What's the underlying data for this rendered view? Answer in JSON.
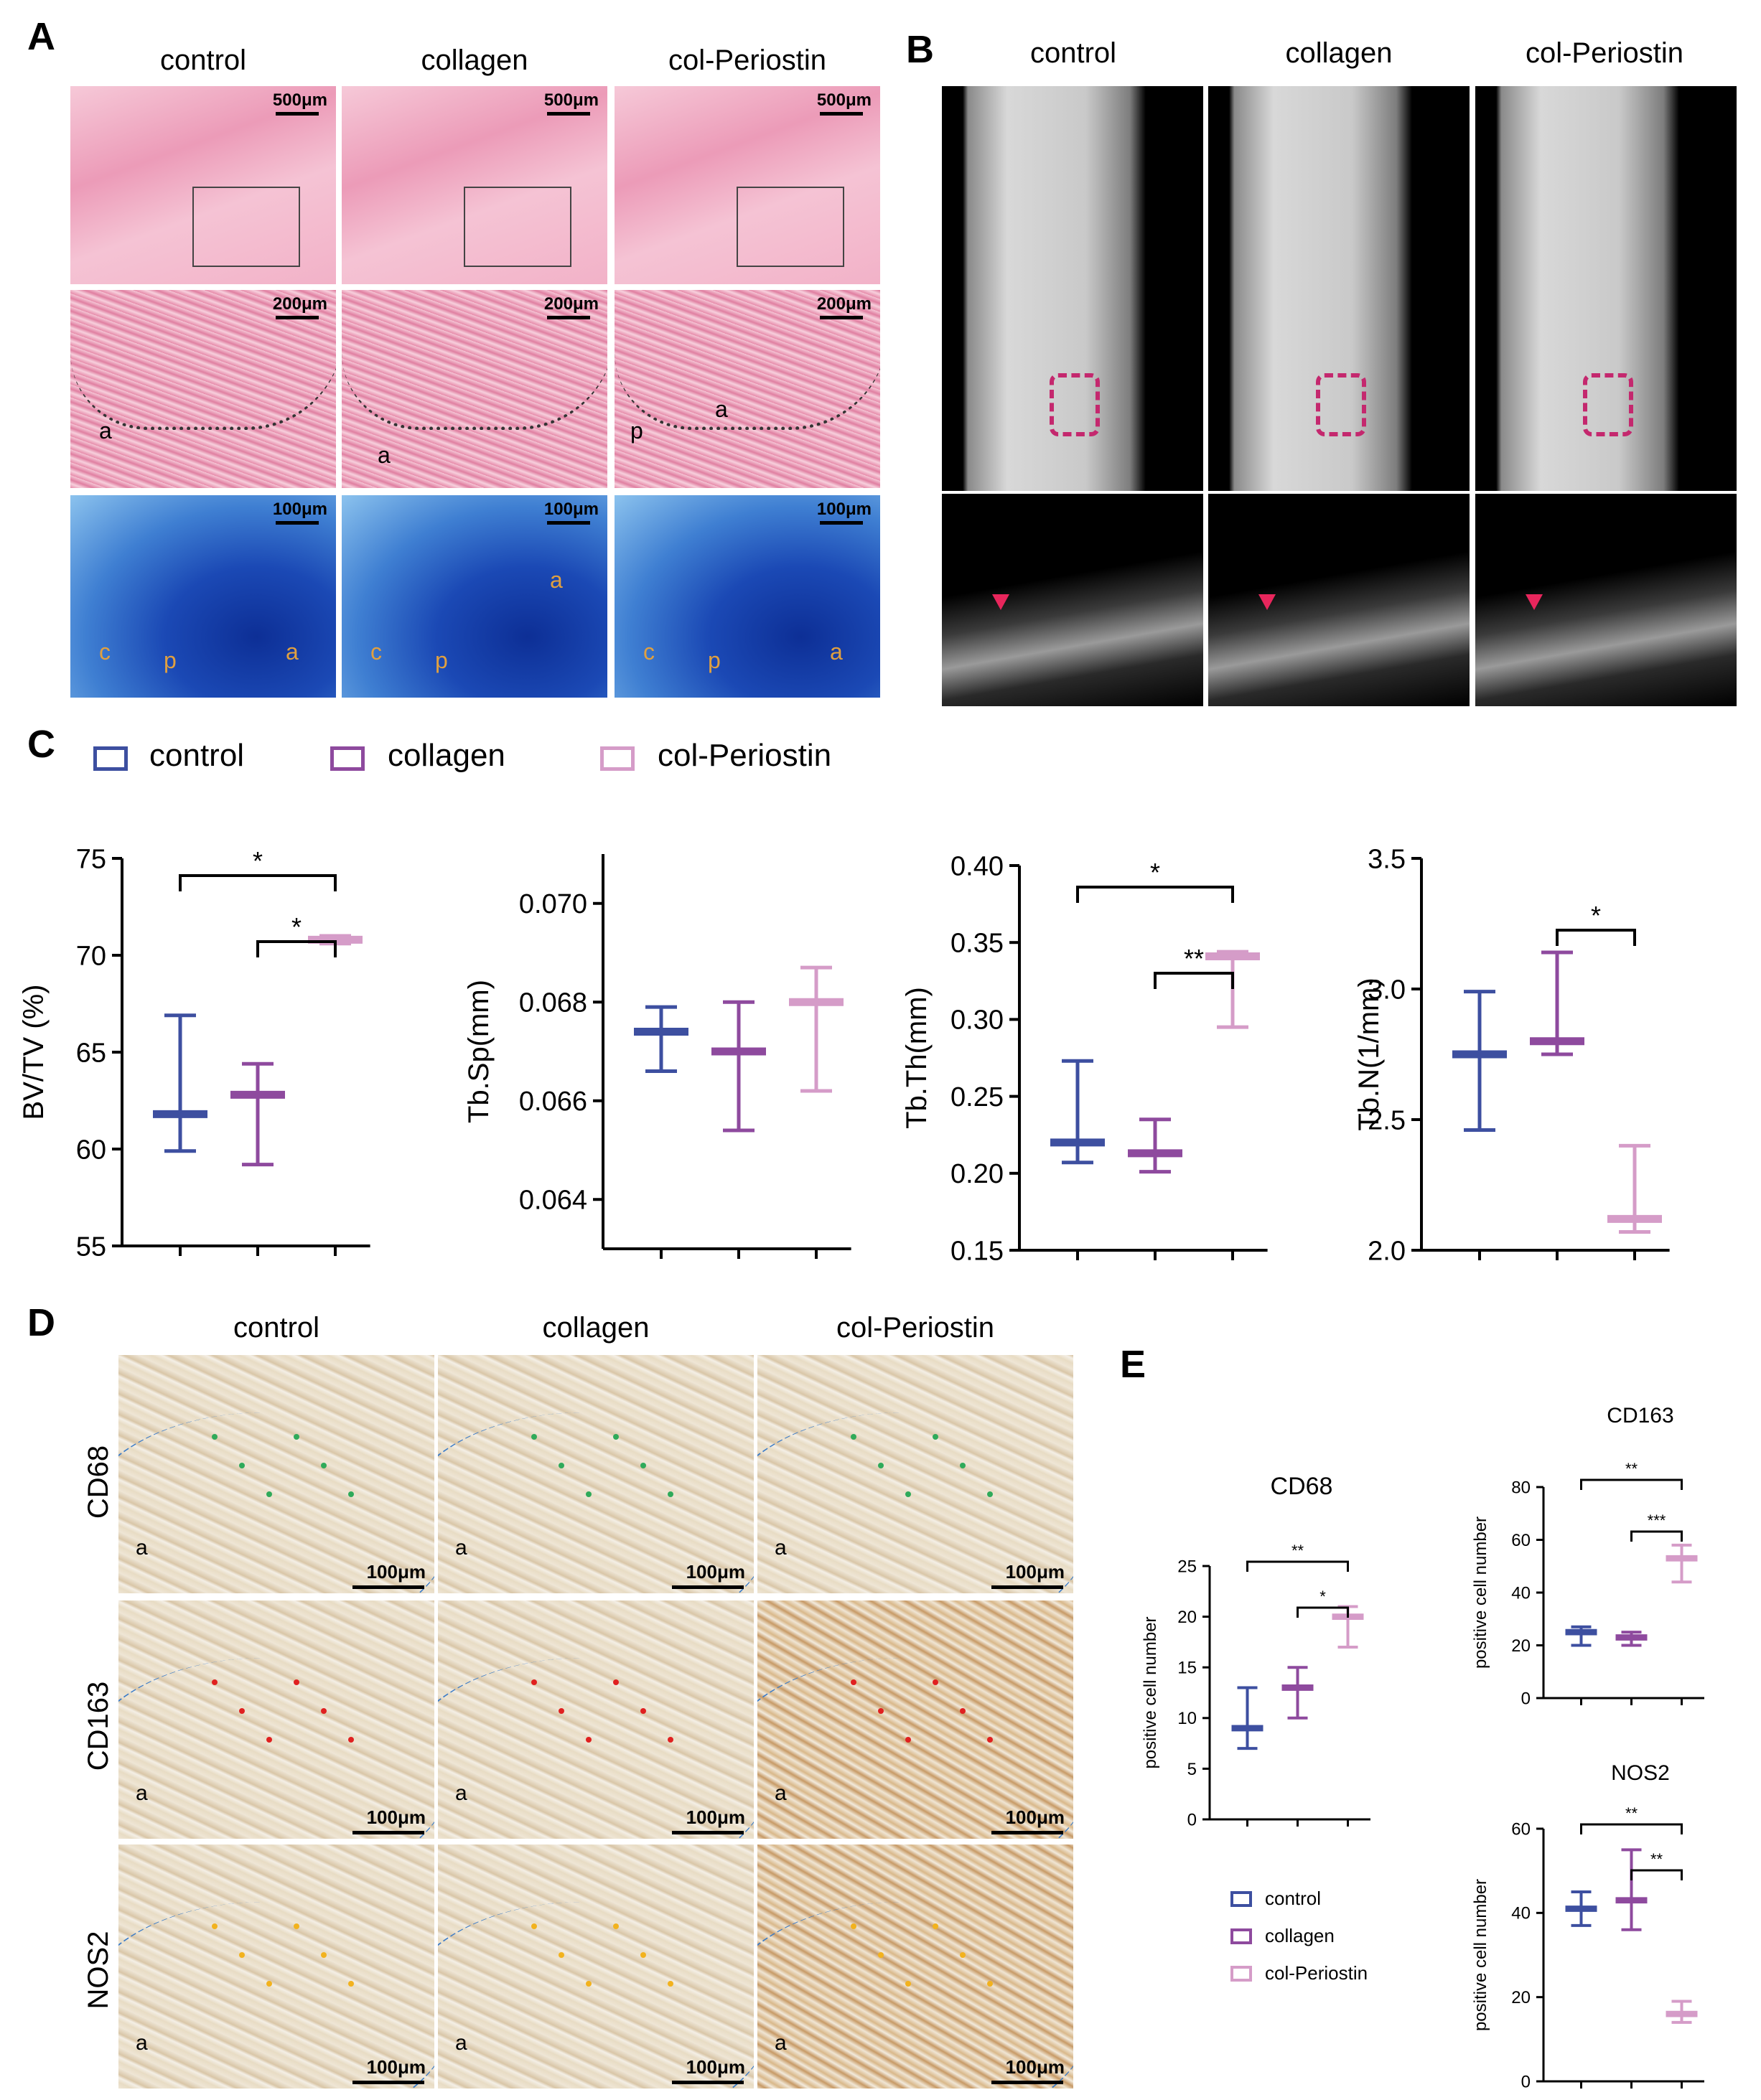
{
  "panels": {
    "A": {
      "letter": "A",
      "columns": [
        "control",
        "collagen",
        "col-Periostin"
      ],
      "scale_row1": "500μm",
      "scale_row2": "200μm",
      "scale_row3": "100μm",
      "labels_row2": [
        [
          "a"
        ],
        [
          "a"
        ],
        [
          "p",
          "a"
        ]
      ],
      "labels_row3": [
        [
          "c",
          "p",
          "a"
        ],
        [
          "c",
          "p",
          "a"
        ],
        [
          "c",
          "p",
          "a"
        ]
      ]
    },
    "B": {
      "letter": "B",
      "columns": [
        "control",
        "collagen",
        "col-Periostin"
      ]
    },
    "C": {
      "letter": "C"
    },
    "D": {
      "letter": "D",
      "columns": [
        "control",
        "collagen",
        "col-Periostin"
      ],
      "rows": [
        "CD68",
        "CD163",
        "NOS2"
      ],
      "scale": "100μm",
      "tissue_label": "a"
    },
    "E": {
      "letter": "E"
    }
  },
  "legend_c": [
    "control",
    "collagen",
    "col-Periostin"
  ],
  "legend_e": [
    "control",
    "collagen",
    "col-Periostin"
  ],
  "colors": {
    "control": "#3d4fa0",
    "collagen": "#8e4a9e",
    "col-Periostin": "#d59cc8"
  },
  "chart_data": [
    {
      "type": "box",
      "ylabel": "BV/TV (%)",
      "ylim": [
        55,
        75
      ],
      "yticks": [
        "55",
        "60",
        "65",
        "70",
        "75"
      ],
      "categories": [
        "control",
        "collagen",
        "col-Periostin"
      ],
      "series": [
        {
          "name": "control",
          "min": 59.9,
          "median": 61.8,
          "max": 66.9
        },
        {
          "name": "collagen",
          "min": 59.2,
          "median": 62.8,
          "max": 64.4
        },
        {
          "name": "col-Periostin",
          "min": 70.6,
          "median": 70.8,
          "max": 71.0
        }
      ],
      "significance": [
        {
          "from": "collagen",
          "to": "col-Periostin",
          "label": "*"
        },
        {
          "from": "control",
          "to": "col-Periostin",
          "label": "*"
        }
      ]
    },
    {
      "type": "box",
      "ylabel": "Tb.Sp(mm)",
      "ylim": [
        0.063,
        0.071
      ],
      "yticks": [
        "0.064",
        "0.066",
        "0.068",
        "0.070"
      ],
      "categories": [
        "control",
        "collagen",
        "col-Periostin"
      ],
      "series": [
        {
          "name": "control",
          "min": 0.0666,
          "median": 0.0674,
          "max": 0.0679
        },
        {
          "name": "collagen",
          "min": 0.0654,
          "median": 0.067,
          "max": 0.068
        },
        {
          "name": "col-Periostin",
          "min": 0.0662,
          "median": 0.068,
          "max": 0.0687
        }
      ],
      "significance": []
    },
    {
      "type": "box",
      "ylabel": "Tb.Th(mm)",
      "ylim": [
        0.15,
        0.4
      ],
      "yticks": [
        "0.15",
        "0.20",
        "0.25",
        "0.30",
        "0.35",
        "0.40"
      ],
      "categories": [
        "control",
        "collagen",
        "col-Periostin"
      ],
      "series": [
        {
          "name": "control",
          "min": 0.207,
          "median": 0.22,
          "max": 0.273
        },
        {
          "name": "collagen",
          "min": 0.201,
          "median": 0.213,
          "max": 0.235
        },
        {
          "name": "col-Periostin",
          "min": 0.295,
          "median": 0.341,
          "max": 0.344
        }
      ],
      "significance": [
        {
          "from": "control",
          "to": "col-Periostin",
          "label": "*"
        },
        {
          "from": "collagen",
          "to": "col-Periostin",
          "label": "**"
        }
      ]
    },
    {
      "type": "box",
      "ylabel": "Tb.N(1/mm)",
      "ylim": [
        2.0,
        3.5
      ],
      "yticks": [
        "2.0",
        "2.5",
        "3.0",
        "3.5"
      ],
      "categories": [
        "control",
        "collagen",
        "col-Periostin"
      ],
      "series": [
        {
          "name": "control",
          "min": 2.46,
          "median": 2.75,
          "max": 2.99
        },
        {
          "name": "collagen",
          "min": 2.75,
          "median": 2.8,
          "max": 3.14
        },
        {
          "name": "col-Periostin",
          "min": 2.07,
          "median": 2.12,
          "max": 2.4
        }
      ],
      "significance": [
        {
          "from": "collagen",
          "to": "col-Periostin",
          "label": "*"
        }
      ]
    },
    {
      "type": "box",
      "title": "CD68",
      "ylabel": "positive cell number",
      "ylim": [
        0,
        25
      ],
      "yticks": [
        "0",
        "5",
        "10",
        "15",
        "20",
        "25"
      ],
      "categories": [
        "control",
        "collagen",
        "col-Periostin"
      ],
      "series": [
        {
          "name": "control",
          "min": 7,
          "median": 9,
          "max": 13
        },
        {
          "name": "collagen",
          "min": 10,
          "median": 13,
          "max": 15
        },
        {
          "name": "col-Periostin",
          "min": 17,
          "median": 20,
          "max": 21
        }
      ],
      "significance": [
        {
          "from": "control",
          "to": "col-Periostin",
          "label": "**"
        },
        {
          "from": "collagen",
          "to": "col-Periostin",
          "label": "*"
        }
      ]
    },
    {
      "type": "box",
      "title": "CD163",
      "ylabel": "positive cell number",
      "ylim": [
        0,
        80
      ],
      "yticks": [
        "0",
        "20",
        "40",
        "60",
        "80"
      ],
      "categories": [
        "control",
        "collagen",
        "col-Periostin"
      ],
      "series": [
        {
          "name": "control",
          "min": 20,
          "median": 25,
          "max": 27
        },
        {
          "name": "collagen",
          "min": 20,
          "median": 23,
          "max": 25
        },
        {
          "name": "col-Periostin",
          "min": 44,
          "median": 53,
          "max": 58
        }
      ],
      "significance": [
        {
          "from": "control",
          "to": "col-Periostin",
          "label": "**"
        },
        {
          "from": "collagen",
          "to": "col-Periostin",
          "label": "***"
        }
      ]
    },
    {
      "type": "box",
      "title": "NOS2",
      "ylabel": "positive cell number",
      "ylim": [
        0,
        60
      ],
      "yticks": [
        "0",
        "20",
        "40",
        "60"
      ],
      "categories": [
        "control",
        "collagen",
        "col-Periostin"
      ],
      "series": [
        {
          "name": "control",
          "min": 37,
          "median": 41,
          "max": 45
        },
        {
          "name": "collagen",
          "min": 36,
          "median": 43,
          "max": 55
        },
        {
          "name": "col-Periostin",
          "min": 14,
          "median": 16,
          "max": 19
        }
      ],
      "significance": [
        {
          "from": "control",
          "to": "col-Periostin",
          "label": "**"
        },
        {
          "from": "collagen",
          "to": "col-Periostin",
          "label": "**"
        }
      ]
    }
  ]
}
